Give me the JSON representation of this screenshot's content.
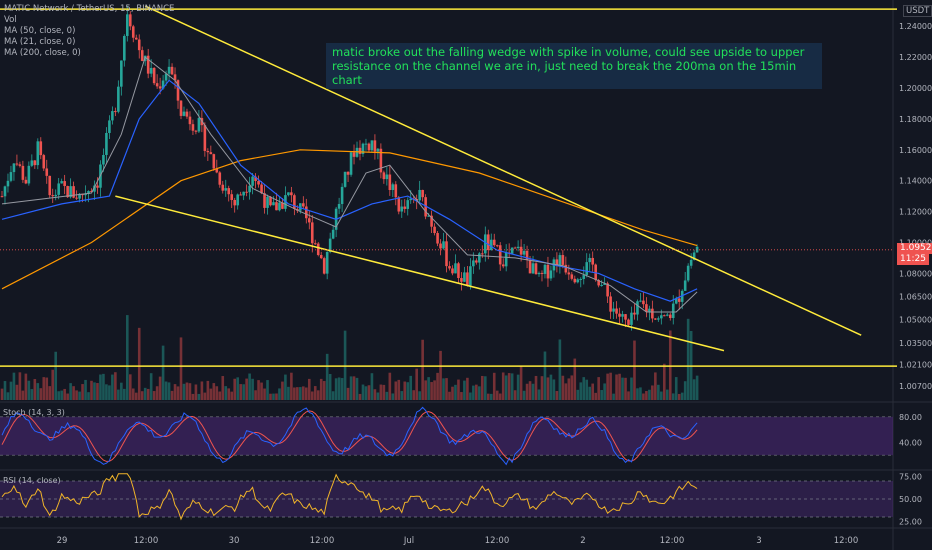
{
  "header": {
    "symbol": "MATIC Network / TetherUS, 15, BINANCE",
    "vol": "Vol",
    "ma50": "MA (50, close, 0)",
    "ma21": "MA (21, close, 0)",
    "ma200": "MA (200, close, 0)",
    "quote_badge": "USDT"
  },
  "annotation": {
    "line1": "matic broke out the falling wedge with spike in volume, could see upside to upper",
    "line2": "resistance on the channel we are in, just need to break the 200ma on the 15min chart"
  },
  "current_price": {
    "price": "1.09526",
    "countdown": "11:25"
  },
  "panes": {
    "stoch_label": "Stoch (14, 3, 3)",
    "rsi_label": "RSI (14, close)"
  },
  "colors": {
    "up": "#26a69a",
    "down": "#ef5350",
    "ma50": "#2962ff",
    "ma21": "#9598a1",
    "ma200": "#ff9800",
    "trend": "#ffeb3b",
    "stoch_k": "#2962ff",
    "stoch_d": "#ef5350",
    "rsi": "#f0b429",
    "band": "#5b2d8e"
  },
  "chart_data": {
    "type": "candlestick",
    "x_tick_labels": [
      "29",
      "12:00",
      "30",
      "12:00",
      "Jul",
      "12:00",
      "2",
      "12:00",
      "3",
      "12:00"
    ],
    "price_axis": {
      "ticks": [
        "1.24000",
        "1.22000",
        "1.20000",
        "1.18000",
        "1.16000",
        "1.14000",
        "1.12000",
        "1.10000",
        "1.08000",
        "1.06500",
        "1.05000",
        "1.03500",
        "1.02100",
        "1.00700"
      ],
      "ylim": [
        1.0,
        1.255
      ]
    },
    "price_path": [
      {
        "t": 0,
        "p": 1.13
      },
      {
        "t": 4,
        "p": 1.155
      },
      {
        "t": 8,
        "p": 1.14
      },
      {
        "t": 12,
        "p": 1.16
      },
      {
        "t": 16,
        "p": 1.13
      },
      {
        "t": 20,
        "p": 1.135
      },
      {
        "t": 26,
        "p": 1.13
      },
      {
        "t": 32,
        "p": 1.14
      },
      {
        "t": 38,
        "p": 1.19
      },
      {
        "t": 42,
        "p": 1.25
      },
      {
        "t": 46,
        "p": 1.225
      },
      {
        "t": 52,
        "p": 1.2
      },
      {
        "t": 56,
        "p": 1.215
      },
      {
        "t": 60,
        "p": 1.185
      },
      {
        "t": 66,
        "p": 1.175
      },
      {
        "t": 72,
        "p": 1.145
      },
      {
        "t": 78,
        "p": 1.125
      },
      {
        "t": 84,
        "p": 1.145
      },
      {
        "t": 90,
        "p": 1.12
      },
      {
        "t": 96,
        "p": 1.13
      },
      {
        "t": 102,
        "p": 1.115
      },
      {
        "t": 108,
        "p": 1.085
      },
      {
        "t": 112,
        "p": 1.12
      },
      {
        "t": 118,
        "p": 1.16
      },
      {
        "t": 124,
        "p": 1.165
      },
      {
        "t": 128,
        "p": 1.145
      },
      {
        "t": 134,
        "p": 1.12
      },
      {
        "t": 140,
        "p": 1.13
      },
      {
        "t": 146,
        "p": 1.105
      },
      {
        "t": 150,
        "p": 1.085
      },
      {
        "t": 156,
        "p": 1.075
      },
      {
        "t": 162,
        "p": 1.1
      },
      {
        "t": 168,
        "p": 1.09
      },
      {
        "t": 174,
        "p": 1.095
      },
      {
        "t": 180,
        "p": 1.075
      },
      {
        "t": 186,
        "p": 1.09
      },
      {
        "t": 192,
        "p": 1.08
      },
      {
        "t": 198,
        "p": 1.085
      },
      {
        "t": 204,
        "p": 1.06
      },
      {
        "t": 210,
        "p": 1.045
      },
      {
        "t": 214,
        "p": 1.06
      },
      {
        "t": 218,
        "p": 1.055
      },
      {
        "t": 222,
        "p": 1.05
      },
      {
        "t": 226,
        "p": 1.06
      },
      {
        "t": 230,
        "p": 1.085
      },
      {
        "t": 233,
        "p": 1.098
      }
    ],
    "ma50": [
      {
        "t": 0,
        "p": 1.115
      },
      {
        "t": 20,
        "p": 1.125
      },
      {
        "t": 36,
        "p": 1.13
      },
      {
        "t": 46,
        "p": 1.18
      },
      {
        "t": 56,
        "p": 1.205
      },
      {
        "t": 66,
        "p": 1.19
      },
      {
        "t": 80,
        "p": 1.15
      },
      {
        "t": 96,
        "p": 1.125
      },
      {
        "t": 112,
        "p": 1.115
      },
      {
        "t": 124,
        "p": 1.125
      },
      {
        "t": 136,
        "p": 1.13
      },
      {
        "t": 150,
        "p": 1.115
      },
      {
        "t": 166,
        "p": 1.095
      },
      {
        "t": 186,
        "p": 1.085
      },
      {
        "t": 200,
        "p": 1.08
      },
      {
        "t": 212,
        "p": 1.07
      },
      {
        "t": 224,
        "p": 1.062
      },
      {
        "t": 233,
        "p": 1.07
      }
    ],
    "ma21": [
      {
        "t": 0,
        "p": 1.125
      },
      {
        "t": 30,
        "p": 1.132
      },
      {
        "t": 40,
        "p": 1.17
      },
      {
        "t": 48,
        "p": 1.22
      },
      {
        "t": 58,
        "p": 1.205
      },
      {
        "t": 70,
        "p": 1.17
      },
      {
        "t": 84,
        "p": 1.135
      },
      {
        "t": 100,
        "p": 1.12
      },
      {
        "t": 112,
        "p": 1.11
      },
      {
        "t": 122,
        "p": 1.145
      },
      {
        "t": 130,
        "p": 1.15
      },
      {
        "t": 142,
        "p": 1.12
      },
      {
        "t": 156,
        "p": 1.092
      },
      {
        "t": 172,
        "p": 1.09
      },
      {
        "t": 188,
        "p": 1.085
      },
      {
        "t": 204,
        "p": 1.072
      },
      {
        "t": 216,
        "p": 1.055
      },
      {
        "t": 226,
        "p": 1.055
      },
      {
        "t": 233,
        "p": 1.068
      }
    ],
    "ma200": [
      {
        "t": 0,
        "p": 1.07
      },
      {
        "t": 30,
        "p": 1.1
      },
      {
        "t": 60,
        "p": 1.14
      },
      {
        "t": 80,
        "p": 1.153
      },
      {
        "t": 100,
        "p": 1.16
      },
      {
        "t": 130,
        "p": 1.158
      },
      {
        "t": 160,
        "p": 1.145
      },
      {
        "t": 190,
        "p": 1.125
      },
      {
        "t": 215,
        "p": 1.108
      },
      {
        "t": 233,
        "p": 1.098
      }
    ],
    "trendlines": [
      {
        "from": {
          "t": 48,
          "p": 1.253
        },
        "to": {
          "t": 288,
          "p": 1.04
        }
      },
      {
        "from": {
          "t": 38,
          "p": 1.13
        },
        "to": {
          "t": 242,
          "p": 1.03
        }
      },
      {
        "from": {
          "t": -5,
          "p": 1.251
        },
        "to": {
          "t": 300,
          "p": 1.251
        }
      },
      {
        "from": {
          "t": -5,
          "p": 1.02
        },
        "to": {
          "t": 300,
          "p": 1.02
        }
      }
    ],
    "stoch": {
      "ticks": [
        "80.00",
        "40.00"
      ],
      "ylim": [
        0,
        100
      ],
      "bands": [
        20,
        80
      ]
    },
    "rsi": {
      "ticks": [
        "75.00",
        "50.00",
        "25.00"
      ],
      "ylim": [
        20,
        80
      ],
      "bands": [
        30,
        70
      ]
    }
  }
}
